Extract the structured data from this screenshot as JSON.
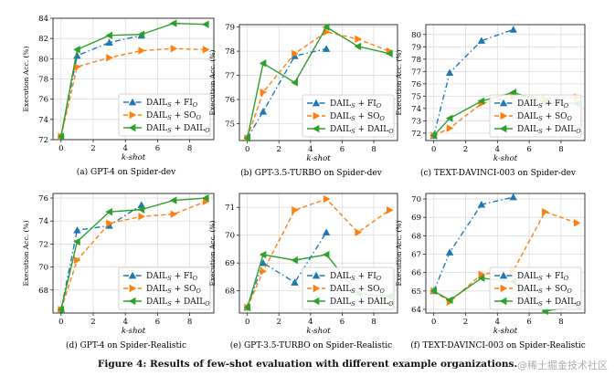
{
  "figure_caption": "Figure 4: Results of few-shot evaluation with different example organizations.",
  "watermark": "@稀土掘金技术社区",
  "colors": {
    "fi": "#1f77b4",
    "so": "#ff7f0e",
    "dail": "#2ca02c",
    "grid": "#dcdcdc"
  },
  "chart_data": [
    {
      "type": "line",
      "caption": "(a)  GPT-4 on Spider-dev",
      "xlabel": "k-shot",
      "ylabel": "Execution Acc. (%)",
      "xlim": [
        -0.5,
        9.5
      ],
      "ylim": [
        72,
        84
      ],
      "xticks": [
        0,
        2,
        4,
        6,
        8
      ],
      "yticks": [
        72,
        74,
        76,
        78,
        80,
        82,
        84
      ],
      "legend": "bottom-right",
      "grid": true,
      "series": [
        {
          "name": "DAIL_S + FI_O",
          "key": "fi",
          "x": [
            0,
            1,
            3,
            5
          ],
          "values": [
            72.3,
            80.3,
            81.6,
            82.3
          ]
        },
        {
          "name": "DAIL_S + SO_O",
          "key": "so",
          "x": [
            0,
            1,
            3,
            5,
            7,
            9
          ],
          "values": [
            72.3,
            79.2,
            80.1,
            80.8,
            81.0,
            80.9
          ]
        },
        {
          "name": "DAIL_S + DAIL_O",
          "key": "dail",
          "x": [
            0,
            1,
            3,
            5,
            7,
            9
          ],
          "values": [
            72.3,
            80.9,
            82.3,
            82.4,
            83.5,
            83.4
          ]
        }
      ]
    },
    {
      "type": "line",
      "caption": "(b)  GPT-3.5-TURBO on Spider-dev",
      "xlabel": "k-shot",
      "ylabel": "Execution Acc. (%)",
      "xlim": [
        -0.5,
        9.5
      ],
      "ylim": [
        74.3,
        79.1
      ],
      "xticks": [
        0,
        2,
        4,
        6,
        8
      ],
      "yticks": [
        75,
        76,
        77,
        78,
        79
      ],
      "legend": "bottom-right",
      "grid": true,
      "series": [
        {
          "name": "DAIL_S + FI_O",
          "key": "fi",
          "x": [
            0,
            1,
            3,
            5
          ],
          "values": [
            74.4,
            75.5,
            77.8,
            78.1
          ]
        },
        {
          "name": "DAIL_S + SO_O",
          "key": "so",
          "x": [
            0,
            1,
            3,
            5,
            7,
            9
          ],
          "values": [
            74.4,
            76.3,
            77.9,
            78.8,
            78.5,
            78.0
          ]
        },
        {
          "name": "DAIL_S + DAIL_O",
          "key": "dail",
          "x": [
            0,
            1,
            3,
            5,
            7,
            9
          ],
          "values": [
            74.4,
            77.5,
            76.7,
            79.0,
            78.2,
            77.9
          ]
        }
      ]
    },
    {
      "type": "line",
      "caption": "(c)  TEXT-DAVINCI-003 on Spider-dev",
      "xlabel": "k-shot",
      "ylabel": "Execution Acc. (%)",
      "xlim": [
        -0.5,
        9.5
      ],
      "ylim": [
        71.4,
        80.8
      ],
      "xticks": [
        0,
        2,
        4,
        6,
        8
      ],
      "yticks": [
        72,
        73,
        74,
        75,
        76,
        77,
        78,
        79,
        80
      ],
      "legend": "bottom-right",
      "grid": true,
      "series": [
        {
          "name": "DAIL_S + FI_O",
          "key": "fi",
          "x": [
            0,
            1,
            3,
            5
          ],
          "values": [
            71.8,
            76.9,
            79.5,
            80.4
          ]
        },
        {
          "name": "DAIL_S + SO_O",
          "key": "so",
          "x": [
            0,
            1,
            3,
            5,
            7,
            9
          ],
          "values": [
            71.8,
            72.4,
            74.4,
            75.0,
            74.8,
            74.9
          ]
        },
        {
          "name": "DAIL_S + DAIL_O",
          "key": "dail",
          "x": [
            0,
            1,
            3,
            5,
            7,
            9
          ],
          "values": [
            71.8,
            73.2,
            74.6,
            75.3,
            74.5,
            74.4
          ]
        }
      ]
    },
    {
      "type": "line",
      "caption": "(d)  GPT-4 on Spider-Realistic",
      "xlabel": "k-shot",
      "ylabel": "Execution Acc. (%)",
      "xlim": [
        -0.5,
        9.5
      ],
      "ylim": [
        66,
        76.4
      ],
      "xticks": [
        0,
        2,
        4,
        6,
        8
      ],
      "yticks": [
        68,
        70,
        72,
        74,
        76
      ],
      "legend": "bottom-right",
      "grid": true,
      "series": [
        {
          "name": "DAIL_S + FI_O",
          "key": "fi",
          "x": [
            0,
            1,
            3,
            5
          ],
          "values": [
            66.3,
            73.2,
            73.6,
            75.4
          ]
        },
        {
          "name": "DAIL_S + SO_O",
          "key": "so",
          "x": [
            0,
            1,
            3,
            5,
            7,
            9
          ],
          "values": [
            66.3,
            70.6,
            73.8,
            74.4,
            74.6,
            75.7
          ]
        },
        {
          "name": "DAIL_S + DAIL_O",
          "key": "dail",
          "x": [
            0,
            1,
            3,
            5,
            7,
            9
          ],
          "values": [
            66.3,
            72.2,
            74.8,
            75.0,
            75.8,
            76.0
          ]
        }
      ]
    },
    {
      "type": "line",
      "caption": "(e)  GPT-3.5-TURBO on Spider-Realistic",
      "xlabel": "k-shot",
      "ylabel": "Execution Acc. (%)",
      "xlim": [
        -0.5,
        9.5
      ],
      "ylim": [
        67.2,
        71.5
      ],
      "xticks": [
        0,
        2,
        4,
        6,
        8
      ],
      "yticks": [
        68,
        69,
        70,
        71
      ],
      "legend": "bottom-right",
      "grid": true,
      "series": [
        {
          "name": "DAIL_S + FI_O",
          "key": "fi",
          "x": [
            0,
            1,
            3,
            5
          ],
          "values": [
            67.4,
            69.0,
            68.3,
            70.1
          ]
        },
        {
          "name": "DAIL_S + SO_O",
          "key": "so",
          "x": [
            0,
            1,
            3,
            5,
            7,
            9
          ],
          "values": [
            67.4,
            68.7,
            70.9,
            71.3,
            70.1,
            70.9
          ]
        },
        {
          "name": "DAIL_S + DAIL_O",
          "key": "dail",
          "x": [
            0,
            1,
            3,
            5,
            7,
            9
          ],
          "values": [
            67.4,
            69.3,
            69.1,
            69.3,
            67.9,
            67.8
          ]
        }
      ]
    },
    {
      "type": "line",
      "caption": "(f)  TEXT-DAVINCI-003 on Spider-Realistic",
      "xlabel": "k-shot",
      "ylabel": "Execution Acc. (%)",
      "xlim": [
        -0.5,
        9.5
      ],
      "ylim": [
        63.8,
        70.3
      ],
      "xticks": [
        0,
        2,
        4,
        6,
        8
      ],
      "yticks": [
        64,
        65,
        66,
        67,
        68,
        69,
        70
      ],
      "legend": "bottom-right",
      "grid": true,
      "series": [
        {
          "name": "DAIL_S + FI_O",
          "key": "fi",
          "x": [
            0,
            1,
            3,
            5
          ],
          "values": [
            65.0,
            67.1,
            69.7,
            70.1
          ]
        },
        {
          "name": "DAIL_S + SO_O",
          "key": "so",
          "x": [
            0,
            1,
            3,
            5,
            7,
            9
          ],
          "values": [
            65.0,
            64.4,
            65.9,
            66.1,
            69.3,
            68.7
          ]
        },
        {
          "name": "DAIL_S + DAIL_O",
          "key": "dail",
          "x": [
            0,
            1,
            3,
            5,
            7,
            9
          ],
          "values": [
            65.0,
            64.5,
            65.7,
            65.5,
            63.9,
            64.2
          ]
        }
      ]
    }
  ]
}
